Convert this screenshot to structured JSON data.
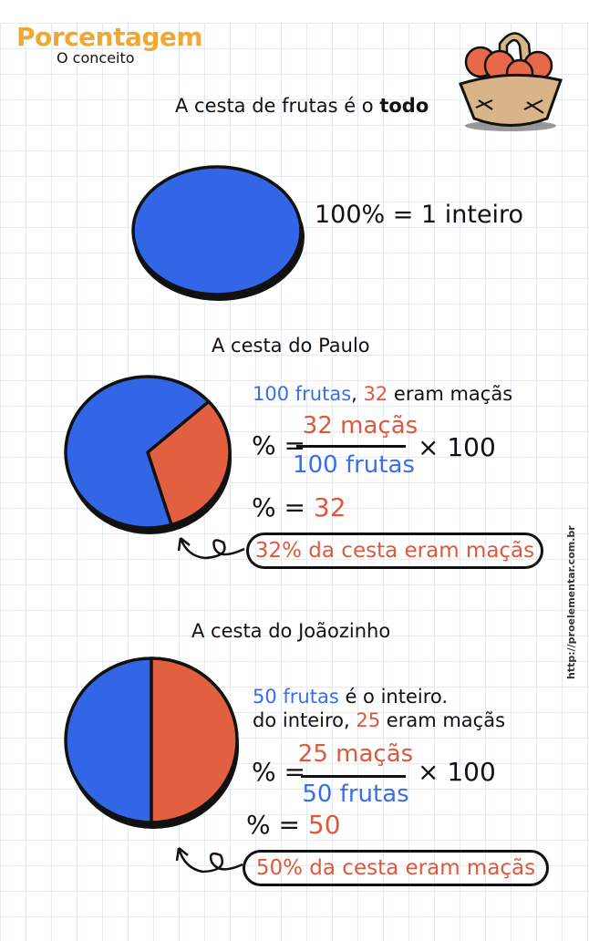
{
  "header": {
    "title": "Porcentagem",
    "subtitle": "O conceito"
  },
  "colors": {
    "whole": "#3366e6",
    "apples": "#e2603f",
    "title": "#f0a830"
  },
  "section1": {
    "heading_prefix": "A cesta de frutas é o ",
    "heading_bold": "todo",
    "equation": "100% = 1 inteiro",
    "pie_percent_apples": 0
  },
  "section2": {
    "heading": "A cesta do Paulo",
    "line1_a": "100 frutas",
    "line1_b": ", ",
    "line1_c": "32",
    "line1_d": " eram maçãs",
    "pct_sign": "% =",
    "numerator": "32 maçãs",
    "denominator": "100 frutas",
    "times": "× 100",
    "result_prefix": "% = ",
    "result_value": "32",
    "conclusion": "32% da cesta eram maçãs",
    "pie_percent_apples": 32
  },
  "section3": {
    "heading": "A cesta do Joãozinho",
    "line1_a": "50 frutas",
    "line1_b": " é o inteiro.",
    "line2_a": "do inteiro, ",
    "line2_b": "25",
    "line2_c": " eram maçãs",
    "pct_sign": "% =",
    "numerator": "25 maçãs",
    "denominator": "50 frutas",
    "times": "× 100",
    "result_prefix": "% = ",
    "result_value": "50",
    "conclusion": "50% da cesta eram maçãs",
    "pie_percent_apples": 50
  },
  "footer": {
    "url": "http://proelementar.com.br"
  },
  "icons": {
    "basket": "fruit-basket-icon",
    "arrow": "curly-arrow-icon"
  }
}
